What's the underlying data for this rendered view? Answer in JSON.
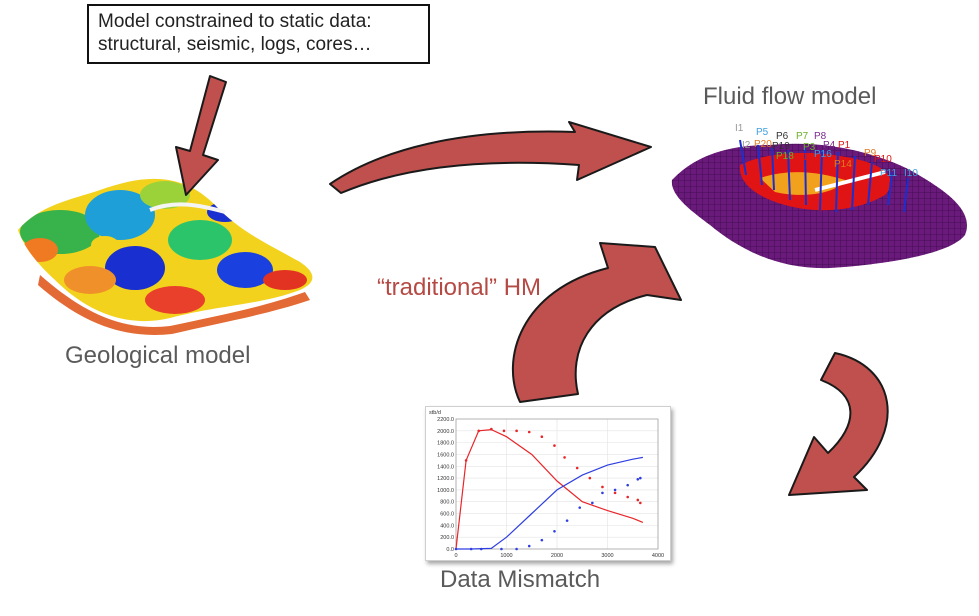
{
  "note": {
    "line1": "Model constrained to static data:",
    "line2": "structural, seismic, logs, cores…"
  },
  "labels": {
    "geological": "Geological model",
    "fluid_flow": "Fluid flow model",
    "traditional_hm": "“traditional” HM",
    "mismatch": "Data Mismatch"
  },
  "wells": [
    "I1",
    "P5",
    "P6",
    "P7",
    "P8",
    "I2",
    "P20",
    "P19",
    "P3",
    "P4",
    "P1",
    "P18",
    "P17",
    "P16",
    "P9",
    "P10",
    "P14",
    "P11",
    "I10"
  ],
  "colors": {
    "arrow_fill": "#c0504d",
    "arrow_stroke": "#1a1a1a",
    "label_text": "#5a5a5a",
    "hm_text": "#b54a45",
    "red_series": "#e8262a",
    "blue_series": "#2f3fe0"
  },
  "chart_data": {
    "type": "line",
    "ylabel": "stb/d",
    "xlim": [
      0,
      4000
    ],
    "ylim": [
      0,
      2200
    ],
    "xticks": [
      "0",
      "1000",
      "2000",
      "3000",
      "4000"
    ],
    "yticks": [
      "0.0",
      "200.0",
      "400.0",
      "600.0",
      "800.0",
      "1000.0",
      "1200.0",
      "1400.0",
      "1600.0",
      "1800.0",
      "2000.0",
      "2200.0"
    ],
    "grid": true,
    "series": [
      {
        "style": "line",
        "color": "red",
        "x": [
          0,
          200,
          450,
          700,
          1000,
          1500,
          2000,
          2500,
          3000,
          3500,
          3700
        ],
        "values": [
          0,
          1500,
          2000,
          2020,
          1900,
          1600,
          1150,
          800,
          650,
          520,
          450
        ]
      },
      {
        "style": "line",
        "color": "blue",
        "x": [
          0,
          300,
          700,
          1000,
          1500,
          2000,
          2500,
          3000,
          3500,
          3700
        ],
        "values": [
          0,
          0,
          10,
          200,
          600,
          1000,
          1250,
          1420,
          1520,
          1550
        ]
      },
      {
        "style": "points",
        "color": "red",
        "x": [
          200,
          450,
          700,
          950,
          1200,
          1450,
          1700,
          1950,
          2150,
          2400,
          2650,
          2900,
          3150,
          3400,
          3600,
          3650
        ],
        "values": [
          1500,
          2000,
          2030,
          2000,
          2000,
          1980,
          1900,
          1750,
          1550,
          1370,
          1200,
          1050,
          950,
          880,
          830,
          780
        ]
      },
      {
        "style": "points",
        "color": "blue",
        "x": [
          0,
          300,
          500,
          900,
          1200,
          1450,
          1700,
          1950,
          2200,
          2450,
          2700,
          2900,
          3150,
          3400,
          3600,
          3650
        ],
        "values": [
          0,
          0,
          0,
          0,
          0,
          50,
          150,
          300,
          480,
          700,
          780,
          950,
          1000,
          1080,
          1180,
          1200
        ]
      }
    ]
  }
}
